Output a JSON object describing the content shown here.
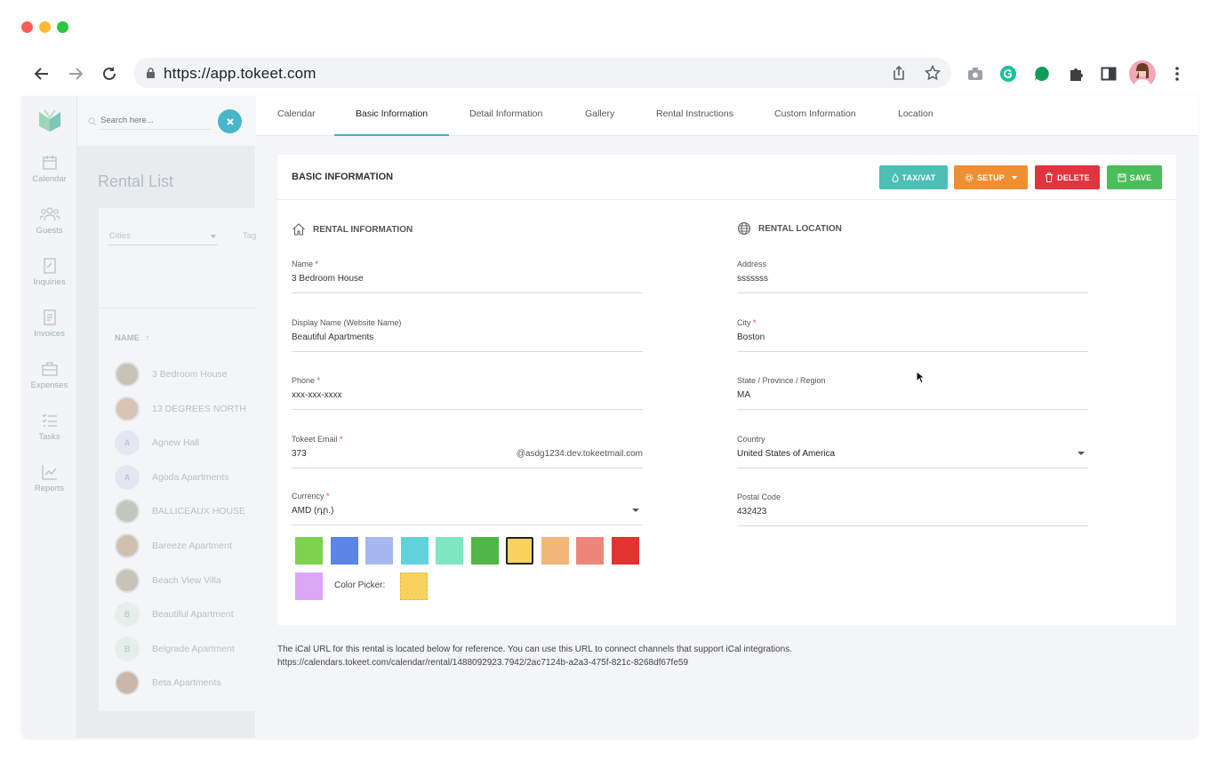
{
  "browser": {
    "url": "https://app.tokeet.com",
    "traffic_lights": [
      "#ff5f57",
      "#febc2e",
      "#28c840"
    ]
  },
  "sidebar": {
    "items": [
      {
        "label": "Calendar",
        "icon": "calendar-icon"
      },
      {
        "label": "Guests",
        "icon": "guests-icon"
      },
      {
        "label": "Inquiries",
        "icon": "inquiries-icon"
      },
      {
        "label": "Invoices",
        "icon": "invoices-icon"
      },
      {
        "label": "Expenses",
        "icon": "expenses-icon"
      },
      {
        "label": "Tasks",
        "icon": "tasks-icon"
      },
      {
        "label": "Reports",
        "icon": "reports-icon"
      }
    ]
  },
  "search": {
    "placeholder": "Search here..."
  },
  "rental_list": {
    "title": "Rental List",
    "filter_cities": "Cities",
    "filter_tags": "Tag",
    "column_name": "NAME",
    "rows": [
      {
        "name": "3 Bedroom House",
        "avatar": "photo"
      },
      {
        "name": "13 DEGREES NORTH",
        "avatar": "photo"
      },
      {
        "name": "Agnew Hall",
        "avatar": "A"
      },
      {
        "name": "Agoda Apartments",
        "avatar": "A"
      },
      {
        "name": "BALLICEAUX HOUSE",
        "avatar": "photo"
      },
      {
        "name": "Bareeze Apartment",
        "avatar": "photo"
      },
      {
        "name": "Beach View Villa",
        "avatar": "photo"
      },
      {
        "name": "Beautiful Apartment",
        "avatar": "B"
      },
      {
        "name": "Belgrade Apartment",
        "avatar": "B"
      },
      {
        "name": "Beta Apartments",
        "avatar": "photo"
      }
    ]
  },
  "tabs": [
    {
      "label": "Calendar"
    },
    {
      "label": "Basic Information"
    },
    {
      "label": "Detail Information"
    },
    {
      "label": "Gallery"
    },
    {
      "label": "Rental Instructions"
    },
    {
      "label": "Custom Information"
    },
    {
      "label": "Location"
    }
  ],
  "active_tab": "Basic Information",
  "card": {
    "title": "BASIC INFORMATION",
    "buttons": {
      "tax": "TAX/VAT",
      "setup": "SETUP",
      "delete": "DELETE",
      "save": "SAVE"
    },
    "button_colors": {
      "tax": "#4dbfb5",
      "setup": "#ef8f32",
      "delete": "#e0343f",
      "save": "#4cbd5b"
    }
  },
  "rental_info": {
    "heading": "RENTAL INFORMATION",
    "name": {
      "label": "Name",
      "value": "3 Bedroom House",
      "required": "*"
    },
    "display_name": {
      "label": "Display Name (Website Name)",
      "value": "Beautiful Apartments"
    },
    "phone": {
      "label": "Phone",
      "value": "xxx-xxx-xxxx",
      "required": "*"
    },
    "email": {
      "label": "Tokeet Email",
      "value": "373",
      "suffix": "@asdg1234.dev.tokeetmail.com",
      "required": "*"
    },
    "currency": {
      "label": "Currency",
      "value": "AMD (դր.)",
      "required": "*"
    },
    "color_picker_label": "Color Picker:",
    "swatches": [
      "#7dd34c",
      "#5b85e6",
      "#a5b8f2",
      "#5fd3dc",
      "#7fe6c2",
      "#4fb647",
      "#f7d35e",
      "#f2b679",
      "#ee857a",
      "#e2342f",
      "#dca7f4"
    ],
    "selected_swatch": "#f7d35e",
    "picker_color": "#f7d35e"
  },
  "rental_location": {
    "heading": "RENTAL LOCATION",
    "address": {
      "label": "Address",
      "value": "sssssss"
    },
    "city": {
      "label": "City",
      "value": "Boston",
      "required": "*"
    },
    "state": {
      "label": "State / Province / Region",
      "value": "MA"
    },
    "country": {
      "label": "Country",
      "value": "United States of America"
    },
    "postal": {
      "label": "Postal Code",
      "value": "432423"
    }
  },
  "ical": {
    "note": "The iCal URL for this rental is located below for reference. You can use this URL to connect channels that support iCal integrations.",
    "url": "https://calendars.tokeet.com/calendar/rental/1488092923.7942/2ac7124b-a2a3-475f-821c-8268df67fe59"
  }
}
